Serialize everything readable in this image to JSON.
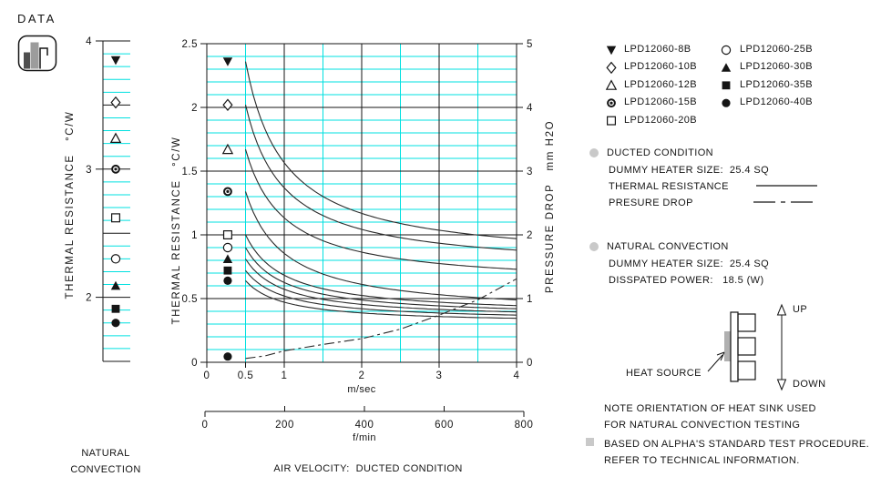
{
  "logo": {
    "text": "DATA"
  },
  "colors": {
    "grid": "#00e0e0",
    "ink": "#151515",
    "curve": "#2a2a2a",
    "bullet_gray": "#c9c9c9",
    "heater_gray": "#b0b0b0"
  },
  "legend": {
    "items": [
      {
        "marker": "triangle-down-filled",
        "label": "LPD12060-8B"
      },
      {
        "marker": "diamond-open",
        "label": "LPD12060-10B"
      },
      {
        "marker": "triangle-up-open",
        "label": "LPD12060-12B"
      },
      {
        "marker": "circle-bullseye",
        "label": "LPD12060-15B"
      },
      {
        "marker": "square-open",
        "label": "LPD12060-20B"
      },
      {
        "marker": "circle-open",
        "label": "LPD12060-25B"
      },
      {
        "marker": "triangle-up-filled",
        "label": "LPD12060-30B"
      },
      {
        "marker": "square-filled",
        "label": "LPD12060-35B"
      },
      {
        "marker": "circle-filled",
        "label": "LPD12060-40B"
      }
    ]
  },
  "chart_data": [
    {
      "id": "natural-convection-strip",
      "type": "scatter",
      "ylabel": "THERMAL RESISTANCE   °C/W",
      "ylim": [
        1.5,
        4
      ],
      "yticks": [
        4,
        3,
        2
      ],
      "grid_minor_step": 0.1,
      "grid_major_step": 0.5,
      "caption_lines": [
        "NATURAL",
        "CONVECTION"
      ],
      "points": [
        {
          "model": "LPD12060-8B",
          "marker": "triangle-down-filled",
          "R": 3.85
        },
        {
          "model": "LPD12060-10B",
          "marker": "diamond-open",
          "R": 3.52
        },
        {
          "model": "LPD12060-12B",
          "marker": "triangle-up-open",
          "R": 3.24
        },
        {
          "model": "LPD12060-15B",
          "marker": "circle-bullseye",
          "R": 3.0
        },
        {
          "model": "LPD12060-20B",
          "marker": "square-open",
          "R": 2.62
        },
        {
          "model": "LPD12060-25B",
          "marker": "circle-open",
          "R": 2.3
        },
        {
          "model": "LPD12060-30B",
          "marker": "triangle-up-filled",
          "R": 2.09
        },
        {
          "model": "LPD12060-35B",
          "marker": "square-filled",
          "R": 1.91
        },
        {
          "model": "LPD12060-40B",
          "marker": "circle-filled",
          "R": 1.8
        }
      ]
    },
    {
      "id": "ducted-condition",
      "type": "line",
      "xlabel": "m/sec",
      "x2label": "f/min",
      "ylabel_left": "THERMAL RESISTANCE   °C/W",
      "ylabel_right": "PRESSURE DROP   mm H2O",
      "caption": "AIR VELOCITY:  DUCTED CONDITION",
      "xlim": [
        0,
        4
      ],
      "ylim_left": [
        0,
        2.5
      ],
      "ylim_right": [
        0,
        5
      ],
      "xticks": [
        0,
        0.5,
        1,
        2,
        3,
        4
      ],
      "x2ticks": [
        0,
        200,
        400,
        600,
        800
      ],
      "yticks_left": [
        0,
        0.5,
        1,
        1.5,
        2,
        2.5
      ],
      "yticks_right": [
        0,
        1,
        2,
        3,
        4,
        5
      ],
      "marker_x": 0.27,
      "curve_x_start": 0.5,
      "series": [
        {
          "model": "LPD12060-8B",
          "marker": "triangle-down-filled",
          "R_at_0p5": 2.36,
          "R_at_4": 0.97
        },
        {
          "model": "LPD12060-10B",
          "marker": "diamond-open",
          "R_at_0p5": 2.02,
          "R_at_4": 0.88
        },
        {
          "model": "LPD12060-12B",
          "marker": "triangle-up-open",
          "R_at_0p5": 1.67,
          "R_at_4": 0.73
        },
        {
          "model": "LPD12060-15B",
          "marker": "circle-bullseye",
          "R_at_0p5": 1.34,
          "R_at_4": 0.49
        },
        {
          "model": "LPD12060-20B",
          "marker": "square-open",
          "R_at_0p5": 1.0,
          "R_at_4": 0.445
        },
        {
          "model": "LPD12060-25B",
          "marker": "circle-open",
          "R_at_0p5": 0.9,
          "R_at_4": 0.42
        },
        {
          "model": "LPD12060-30B",
          "marker": "triangle-up-filled",
          "R_at_0p5": 0.81,
          "R_at_4": 0.395
        },
        {
          "model": "LPD12060-35B",
          "marker": "square-filled",
          "R_at_0p5": 0.72,
          "R_at_4": 0.37
        },
        {
          "model": "LPD12060-40B",
          "marker": "circle-filled",
          "R_at_0p5": 0.64,
          "R_at_4": 0.345
        }
      ],
      "pressure_drop": {
        "style": "dash-dot",
        "units": "mm H2O",
        "points": [
          [
            0.5,
            0.06
          ],
          [
            0.75,
            0.1
          ],
          [
            1,
            0.18
          ],
          [
            1.25,
            0.23
          ],
          [
            1.5,
            0.28
          ],
          [
            2,
            0.37
          ],
          [
            2.5,
            0.52
          ],
          [
            3,
            0.74
          ],
          [
            3.5,
            0.98
          ],
          [
            4,
            1.31
          ]
        ],
        "marker": {
          "type": "circle-filled",
          "x": 0.27,
          "value": 0.09
        }
      }
    }
  ],
  "right_panel": {
    "ducted": {
      "heading": "DUCTED CONDITION",
      "dummy_heater": "DUMMY HEATER SIZE:  25.4 SQ",
      "thermal_resistance_label": "THERMAL RESISTANCE",
      "pressure_drop_label": "PRESURE DROP"
    },
    "natural": {
      "heading": "NATURAL CONVECTION",
      "dummy_heater": "DUMMY HEATER SIZE:  25.4 SQ",
      "dissipated_power": "DISSPATED POWER:   18.5 (W)"
    }
  },
  "diagram": {
    "heat_source_label": "HEAT SOURCE",
    "up_label": "UP",
    "down_label": "DOWN"
  },
  "notes": {
    "orientation_line1": "NOTE ORIENTATION OF HEAT SINK USED",
    "orientation_line2": "FOR NATURAL CONVECTION TESTING",
    "procedure_line1": "BASED ON ALPHA'S STANDARD TEST PROCEDURE.",
    "procedure_line2": "REFER TO TECHNICAL INFORMATION."
  }
}
